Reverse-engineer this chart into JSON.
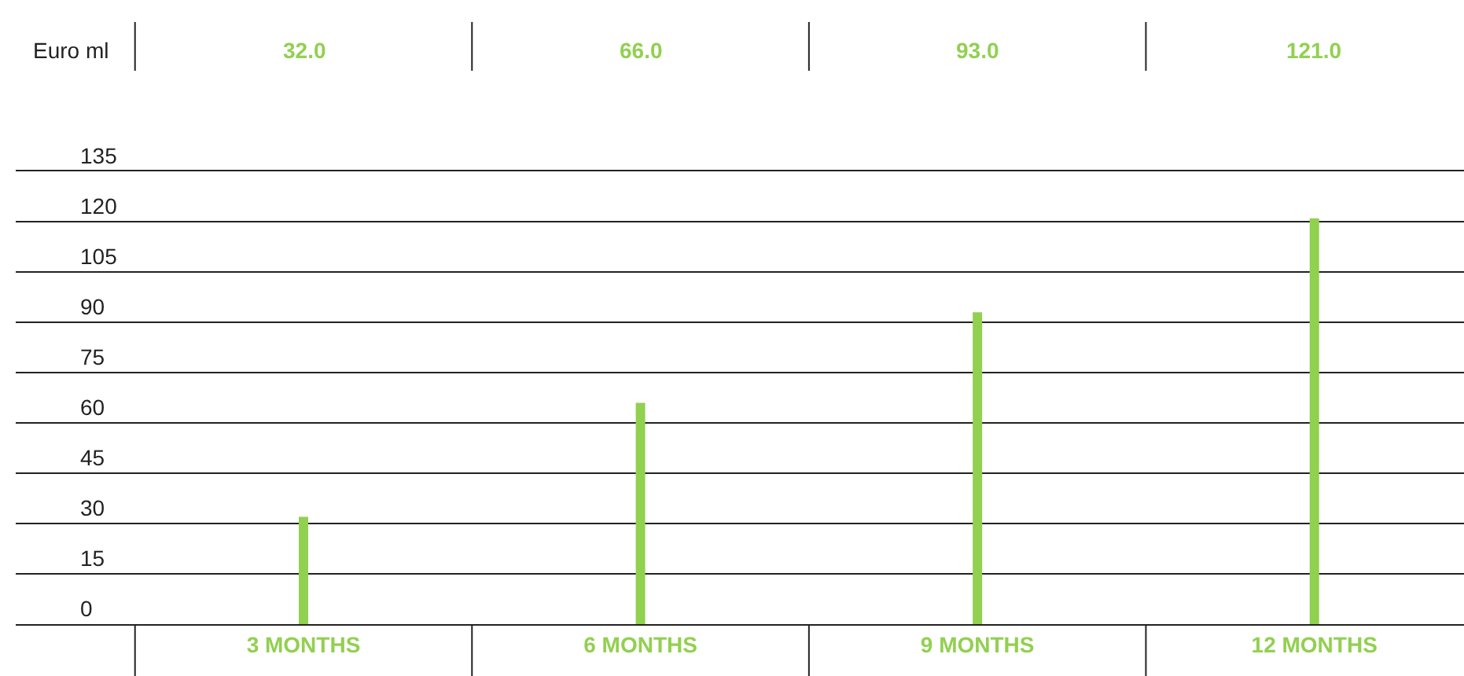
{
  "chart_data": {
    "type": "bar",
    "ylabel": "Euro ml",
    "categories": [
      "3 MONTHS",
      "6 MONTHS",
      "9 MONTHS",
      "12 MONTHS"
    ],
    "values": [
      32,
      66,
      93,
      121
    ],
    "value_labels": [
      "32.0",
      "66.0",
      "93.0",
      "121.0"
    ],
    "color": "#92d050",
    "ylim": [
      0,
      135
    ],
    "yticks": [
      0,
      15,
      30,
      45,
      60,
      75,
      90,
      105,
      120,
      135
    ],
    "grid": "y",
    "legend": false
  }
}
